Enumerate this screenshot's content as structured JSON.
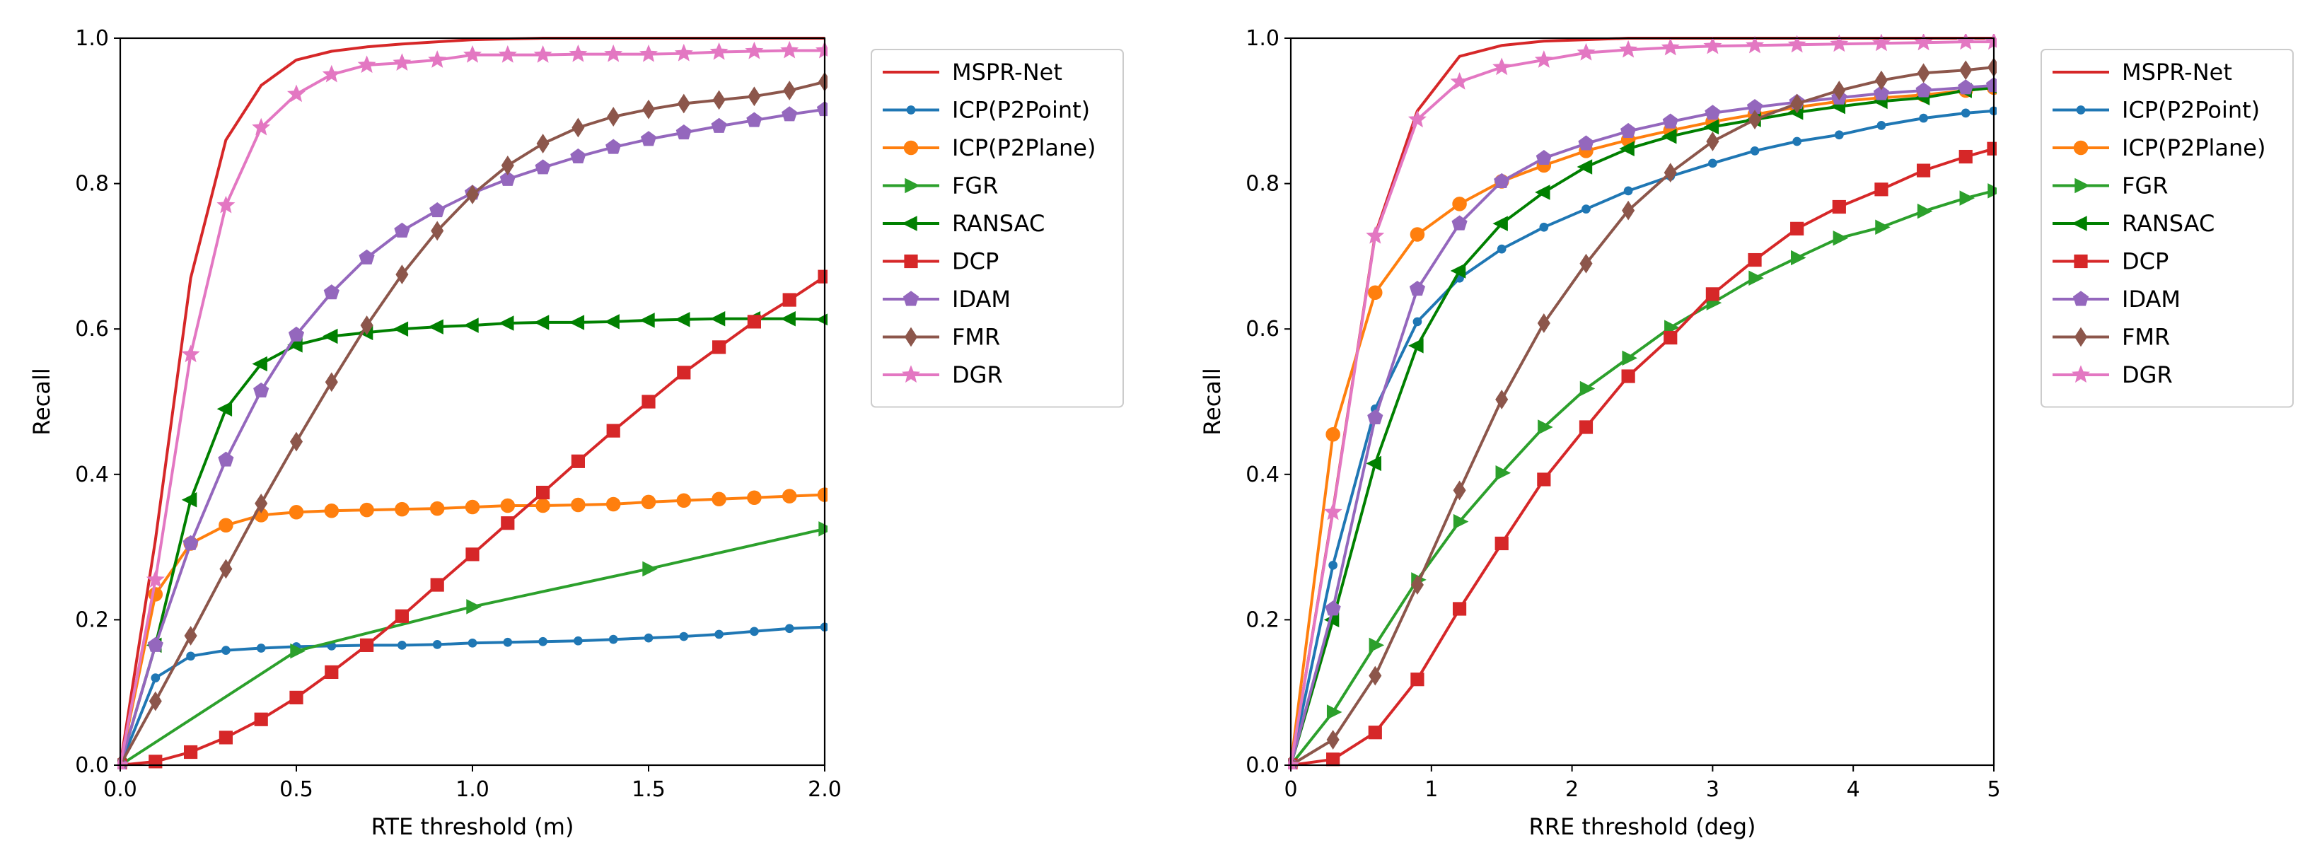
{
  "chart_data": [
    {
      "type": "line",
      "xlabel": "RTE threshold (m)",
      "ylabel": "Recall",
      "xlim": [
        0,
        2.0
      ],
      "ylim": [
        0,
        1.0
      ],
      "x_ticks": [
        0,
        0.5,
        1.0,
        1.5,
        2.0
      ],
      "x_tick_labels": [
        "0.0",
        "0.5",
        "1.0",
        "1.5",
        "2.0"
      ],
      "y_ticks": [
        0,
        0.2,
        0.4,
        0.6,
        0.8,
        1.0
      ],
      "y_tick_labels": [
        "0.0",
        "0.2",
        "0.4",
        "0.6",
        "0.8",
        "1.0"
      ],
      "legend_position": "outside-right",
      "series": [
        {
          "name": "MSPR-Net",
          "color": "#d62728",
          "marker": "none",
          "x": [
            0,
            0.1,
            0.2,
            0.3,
            0.4,
            0.5,
            0.6,
            0.7,
            0.8,
            0.9,
            1.0,
            1.1,
            1.2,
            1.3,
            1.4,
            1.5,
            1.6,
            1.7,
            1.8,
            1.9,
            2.0
          ],
          "y": [
            0,
            0.31,
            0.67,
            0.86,
            0.935,
            0.97,
            0.982,
            0.988,
            0.992,
            0.995,
            0.998,
            0.999,
            1.0,
            1.0,
            1.0,
            1.0,
            1.0,
            1.0,
            1.0,
            1.0,
            1.0
          ]
        },
        {
          "name": "ICP(P2Point)",
          "color": "#1f77b4",
          "marker": "dot",
          "x": [
            0,
            0.1,
            0.2,
            0.3,
            0.4,
            0.5,
            0.6,
            0.7,
            0.8,
            0.9,
            1.0,
            1.1,
            1.2,
            1.3,
            1.4,
            1.5,
            1.6,
            1.7,
            1.8,
            1.9,
            2.0
          ],
          "y": [
            0,
            0.12,
            0.15,
            0.158,
            0.161,
            0.163,
            0.164,
            0.165,
            0.165,
            0.166,
            0.168,
            0.169,
            0.17,
            0.171,
            0.173,
            0.175,
            0.177,
            0.18,
            0.184,
            0.188,
            0.19
          ]
        },
        {
          "name": "ICP(P2Plane)",
          "color": "#ff7f0e",
          "marker": "circle",
          "x": [
            0,
            0.1,
            0.2,
            0.3,
            0.4,
            0.5,
            0.6,
            0.7,
            0.8,
            0.9,
            1.0,
            1.1,
            1.2,
            1.3,
            1.4,
            1.5,
            1.6,
            1.7,
            1.8,
            1.9,
            2.0
          ],
          "y": [
            0,
            0.235,
            0.305,
            0.33,
            0.344,
            0.348,
            0.35,
            0.351,
            0.352,
            0.353,
            0.355,
            0.357,
            0.357,
            0.358,
            0.359,
            0.362,
            0.364,
            0.366,
            0.368,
            0.37,
            0.372
          ]
        },
        {
          "name": "FGR",
          "color": "#2ca02c",
          "marker": "triangle-right",
          "x": [
            0,
            0.5,
            1.0,
            1.5,
            2.0
          ],
          "y": [
            0,
            0.157,
            0.218,
            0.27,
            0.325
          ]
        },
        {
          "name": "RANSAC",
          "color": "#008000",
          "marker": "triangle-left",
          "x": [
            0,
            0.1,
            0.2,
            0.3,
            0.4,
            0.5,
            0.6,
            0.7,
            0.8,
            0.9,
            1.0,
            1.1,
            1.2,
            1.3,
            1.4,
            1.5,
            1.6,
            1.7,
            1.8,
            1.9,
            2.0
          ],
          "y": [
            0,
            0.165,
            0.365,
            0.49,
            0.552,
            0.578,
            0.59,
            0.595,
            0.6,
            0.603,
            0.605,
            0.608,
            0.609,
            0.609,
            0.61,
            0.612,
            0.613,
            0.614,
            0.614,
            0.614,
            0.613
          ]
        },
        {
          "name": "DCP",
          "color": "#d62728",
          "marker": "square",
          "x": [
            0,
            0.1,
            0.2,
            0.3,
            0.4,
            0.5,
            0.6,
            0.7,
            0.8,
            0.9,
            1.0,
            1.1,
            1.2,
            1.3,
            1.4,
            1.5,
            1.6,
            1.7,
            1.8,
            1.9,
            2.0
          ],
          "y": [
            0,
            0.005,
            0.018,
            0.038,
            0.063,
            0.093,
            0.128,
            0.165,
            0.205,
            0.248,
            0.29,
            0.333,
            0.375,
            0.418,
            0.46,
            0.5,
            0.54,
            0.575,
            0.61,
            0.64,
            0.672
          ]
        },
        {
          "name": "IDAM",
          "color": "#9467bd",
          "marker": "pentagon",
          "x": [
            0,
            0.1,
            0.2,
            0.3,
            0.4,
            0.5,
            0.6,
            0.7,
            0.8,
            0.9,
            1.0,
            1.1,
            1.2,
            1.3,
            1.4,
            1.5,
            1.6,
            1.7,
            1.8,
            1.9,
            2.0
          ],
          "y": [
            0,
            0.165,
            0.305,
            0.42,
            0.515,
            0.592,
            0.65,
            0.698,
            0.735,
            0.763,
            0.787,
            0.806,
            0.822,
            0.837,
            0.85,
            0.861,
            0.87,
            0.879,
            0.887,
            0.895,
            0.902
          ]
        },
        {
          "name": "FMR",
          "color": "#8c564b",
          "marker": "diamond",
          "x": [
            0,
            0.1,
            0.2,
            0.3,
            0.4,
            0.5,
            0.6,
            0.7,
            0.8,
            0.9,
            1.0,
            1.1,
            1.2,
            1.3,
            1.4,
            1.5,
            1.6,
            1.7,
            1.8,
            1.9,
            2.0
          ],
          "y": [
            0,
            0.088,
            0.178,
            0.27,
            0.36,
            0.445,
            0.527,
            0.605,
            0.675,
            0.735,
            0.785,
            0.825,
            0.855,
            0.877,
            0.892,
            0.902,
            0.91,
            0.915,
            0.92,
            0.928,
            0.94
          ]
        },
        {
          "name": "DGR",
          "color": "#e377c2",
          "marker": "star",
          "x": [
            0,
            0.1,
            0.2,
            0.3,
            0.4,
            0.5,
            0.6,
            0.7,
            0.8,
            0.9,
            1.0,
            1.1,
            1.2,
            1.3,
            1.4,
            1.5,
            1.6,
            1.7,
            1.8,
            1.9,
            2.0
          ],
          "y": [
            0,
            0.255,
            0.565,
            0.77,
            0.877,
            0.923,
            0.95,
            0.963,
            0.966,
            0.97,
            0.977,
            0.977,
            0.977,
            0.978,
            0.978,
            0.978,
            0.979,
            0.981,
            0.982,
            0.983,
            0.983
          ]
        }
      ]
    },
    {
      "type": "line",
      "xlabel": "RRE threshold (deg)",
      "ylabel": "Recall",
      "xlim": [
        0,
        5
      ],
      "ylim": [
        0,
        1.0
      ],
      "x_ticks": [
        0,
        1,
        2,
        3,
        4,
        5
      ],
      "x_tick_labels": [
        "0",
        "1",
        "2",
        "3",
        "4",
        "5"
      ],
      "y_ticks": [
        0,
        0.2,
        0.4,
        0.6,
        0.8,
        1.0
      ],
      "y_tick_labels": [
        "0.0",
        "0.2",
        "0.4",
        "0.6",
        "0.8",
        "1.0"
      ],
      "legend_position": "outside-right",
      "series": [
        {
          "name": "MSPR-Net",
          "color": "#d62728",
          "marker": "none",
          "x": [
            0,
            0.3,
            0.6,
            0.9,
            1.2,
            1.5,
            1.8,
            2.1,
            2.4,
            2.7,
            3.0,
            3.3,
            3.6,
            3.9,
            4.2,
            4.5,
            4.8,
            5.0
          ],
          "y": [
            0,
            0.35,
            0.73,
            0.9,
            0.975,
            0.99,
            0.996,
            0.998,
            1.0,
            1.0,
            1.0,
            1.0,
            1.0,
            1.0,
            1.0,
            1.0,
            1.0,
            1.0
          ]
        },
        {
          "name": "ICP(P2Point)",
          "color": "#1f77b4",
          "marker": "dot",
          "x": [
            0,
            0.3,
            0.6,
            0.9,
            1.2,
            1.5,
            1.8,
            2.1,
            2.4,
            2.7,
            3.0,
            3.3,
            3.6,
            3.9,
            4.2,
            4.5,
            4.8,
            5.0
          ],
          "y": [
            0,
            0.275,
            0.49,
            0.61,
            0.67,
            0.71,
            0.74,
            0.765,
            0.79,
            0.81,
            0.828,
            0.845,
            0.858,
            0.867,
            0.88,
            0.89,
            0.897,
            0.9
          ]
        },
        {
          "name": "ICP(P2Plane)",
          "color": "#ff7f0e",
          "marker": "circle",
          "x": [
            0,
            0.3,
            0.6,
            0.9,
            1.2,
            1.5,
            1.8,
            2.1,
            2.4,
            2.7,
            3.0,
            3.3,
            3.6,
            3.9,
            4.2,
            4.5,
            4.8,
            5.0
          ],
          "y": [
            0,
            0.455,
            0.65,
            0.73,
            0.772,
            0.803,
            0.825,
            0.845,
            0.86,
            0.873,
            0.885,
            0.895,
            0.905,
            0.913,
            0.918,
            0.922,
            0.928,
            0.932
          ]
        },
        {
          "name": "FGR",
          "color": "#2ca02c",
          "marker": "triangle-right",
          "x": [
            0,
            0.3,
            0.6,
            0.9,
            1.2,
            1.5,
            1.8,
            2.1,
            2.4,
            2.7,
            3.0,
            3.3,
            3.6,
            3.9,
            4.2,
            4.5,
            4.8,
            5.0
          ],
          "y": [
            0,
            0.073,
            0.165,
            0.255,
            0.335,
            0.402,
            0.465,
            0.518,
            0.56,
            0.602,
            0.636,
            0.67,
            0.698,
            0.725,
            0.74,
            0.762,
            0.78,
            0.79
          ]
        },
        {
          "name": "RANSAC",
          "color": "#008000",
          "marker": "triangle-left",
          "x": [
            0,
            0.3,
            0.6,
            0.9,
            1.2,
            1.5,
            1.8,
            2.1,
            2.4,
            2.7,
            3.0,
            3.3,
            3.6,
            3.9,
            4.2,
            4.5,
            4.8,
            5.0
          ],
          "y": [
            0,
            0.2,
            0.415,
            0.577,
            0.68,
            0.745,
            0.788,
            0.823,
            0.848,
            0.865,
            0.878,
            0.888,
            0.898,
            0.906,
            0.913,
            0.918,
            0.928,
            0.932
          ]
        },
        {
          "name": "DCP",
          "color": "#d62728",
          "marker": "square",
          "x": [
            0,
            0.3,
            0.6,
            0.9,
            1.2,
            1.5,
            1.8,
            2.1,
            2.4,
            2.7,
            3.0,
            3.3,
            3.6,
            3.9,
            4.2,
            4.5,
            4.8,
            5.0
          ],
          "y": [
            0,
            0.008,
            0.045,
            0.118,
            0.215,
            0.305,
            0.393,
            0.465,
            0.535,
            0.588,
            0.648,
            0.695,
            0.738,
            0.768,
            0.792,
            0.818,
            0.837,
            0.848
          ]
        },
        {
          "name": "IDAM",
          "color": "#9467bd",
          "marker": "pentagon",
          "x": [
            0,
            0.3,
            0.6,
            0.9,
            1.2,
            1.5,
            1.8,
            2.1,
            2.4,
            2.7,
            3.0,
            3.3,
            3.6,
            3.9,
            4.2,
            4.5,
            4.8,
            5.0
          ],
          "y": [
            0,
            0.215,
            0.478,
            0.655,
            0.745,
            0.803,
            0.835,
            0.855,
            0.872,
            0.885,
            0.897,
            0.905,
            0.912,
            0.918,
            0.924,
            0.928,
            0.932,
            0.935
          ]
        },
        {
          "name": "FMR",
          "color": "#8c564b",
          "marker": "diamond",
          "x": [
            0,
            0.3,
            0.6,
            0.9,
            1.2,
            1.5,
            1.8,
            2.1,
            2.4,
            2.7,
            3.0,
            3.3,
            3.6,
            3.9,
            4.2,
            4.5,
            4.8,
            5.0
          ],
          "y": [
            0,
            0.035,
            0.123,
            0.248,
            0.378,
            0.503,
            0.608,
            0.69,
            0.763,
            0.815,
            0.858,
            0.888,
            0.91,
            0.928,
            0.942,
            0.952,
            0.956,
            0.96
          ]
        },
        {
          "name": "DGR",
          "color": "#e377c2",
          "marker": "star",
          "x": [
            0,
            0.3,
            0.6,
            0.9,
            1.2,
            1.5,
            1.8,
            2.1,
            2.4,
            2.7,
            3.0,
            3.3,
            3.6,
            3.9,
            4.2,
            4.5,
            4.8,
            5.0
          ],
          "y": [
            0,
            0.348,
            0.728,
            0.888,
            0.94,
            0.96,
            0.97,
            0.98,
            0.984,
            0.987,
            0.989,
            0.99,
            0.991,
            0.992,
            0.993,
            0.994,
            0.995,
            0.995
          ]
        }
      ]
    }
  ]
}
